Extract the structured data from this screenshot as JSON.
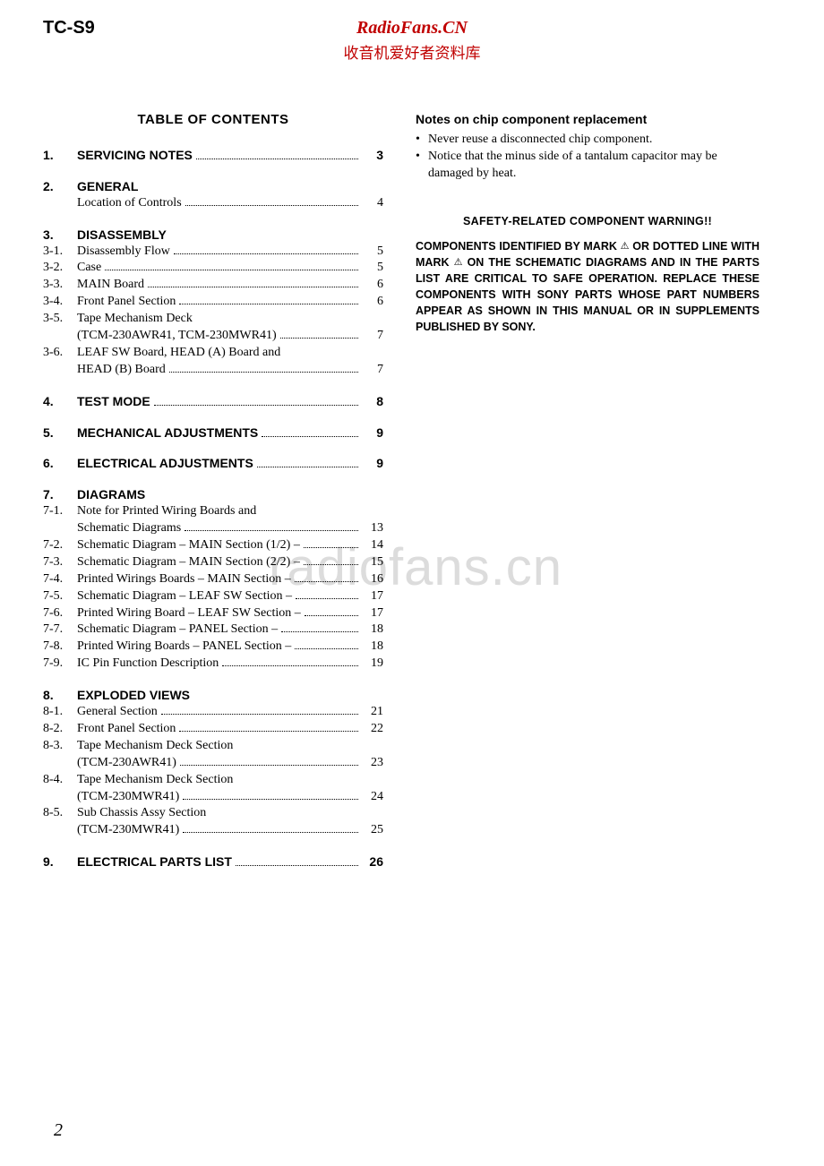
{
  "header": {
    "model": "TC-S9",
    "brand_en": "RadioFans.CN",
    "brand_cn": "收音机爱好者资料库"
  },
  "watermark": "radiofans.cn",
  "page_number": "2",
  "toc_title": "TABLE  OF  CONTENTS",
  "toc": [
    {
      "type": "bold",
      "num": "1.",
      "label": "SERVICING NOTES",
      "page": "3",
      "dots": true
    },
    {
      "type": "gap"
    },
    {
      "type": "bold",
      "num": "2.",
      "label": "GENERAL",
      "page": "",
      "dots": false
    },
    {
      "type": "plain",
      "num": "",
      "label": "Location of Controls",
      "page": "4",
      "dots": true
    },
    {
      "type": "gap"
    },
    {
      "type": "bold",
      "num": "3.",
      "label": "DISASSEMBLY",
      "page": "",
      "dots": false
    },
    {
      "type": "plain",
      "num": "3-1.",
      "label": "Disassembly Flow",
      "page": "5",
      "dots": true
    },
    {
      "type": "plain",
      "num": "3-2.",
      "label": "Case",
      "page": "5",
      "dots": true
    },
    {
      "type": "plain",
      "num": "3-3.",
      "label": "MAIN Board",
      "page": "6",
      "dots": true
    },
    {
      "type": "plain",
      "num": "3-4.",
      "label": "Front Panel Section",
      "page": "6",
      "dots": true
    },
    {
      "type": "plain",
      "num": "3-5.",
      "label": "Tape Mechanism Deck",
      "page": "",
      "dots": false
    },
    {
      "type": "plain",
      "num": "",
      "label": "(TCM-230AWR41, TCM-230MWR41)",
      "page": "7",
      "dots": true
    },
    {
      "type": "plain",
      "num": "3-6.",
      "label": "LEAF SW Board, HEAD (A) Board and",
      "page": "",
      "dots": false
    },
    {
      "type": "plain",
      "num": "",
      "label": "HEAD (B) Board",
      "page": "7",
      "dots": true
    },
    {
      "type": "gap"
    },
    {
      "type": "bold",
      "num": "4.",
      "label": "TEST  MODE",
      "page": "8",
      "dots": true
    },
    {
      "type": "gap"
    },
    {
      "type": "bold",
      "num": "5.",
      "label": "MECHANICAL  ADJUSTMENTS",
      "page": "9",
      "dots": true
    },
    {
      "type": "gap"
    },
    {
      "type": "bold",
      "num": "6.",
      "label": "ELECTRICAL  ADJUSTMENTS",
      "page": "9",
      "dots": true
    },
    {
      "type": "gap"
    },
    {
      "type": "bold",
      "num": "7.",
      "label": "DIAGRAMS",
      "page": "",
      "dots": false
    },
    {
      "type": "plain",
      "num": "7-1.",
      "label": "Note for Printed Wiring Boards and",
      "page": "",
      "dots": false
    },
    {
      "type": "plain",
      "num": "",
      "label": "Schematic Diagrams",
      "page": "13",
      "dots": true
    },
    {
      "type": "plain",
      "num": "7-2.",
      "label": "Schematic Diagram  – MAIN Section (1/2) –",
      "page": "14",
      "dots": true
    },
    {
      "type": "plain",
      "num": "7-3.",
      "label": "Schematic Diagram  – MAIN Section (2/2) –",
      "page": "15",
      "dots": true
    },
    {
      "type": "plain",
      "num": "7-4.",
      "label": "Printed Wirings Boards  – MAIN Section –",
      "page": "16",
      "dots": true
    },
    {
      "type": "plain",
      "num": "7-5.",
      "label": "Schematic Diagram  – LEAF SW Section – ",
      "page": "17",
      "dots": true
    },
    {
      "type": "plain",
      "num": "7-6.",
      "label": "Printed Wiring Board  – LEAF SW Section – ",
      "page": "17",
      "dots": true
    },
    {
      "type": "plain",
      "num": "7-7.",
      "label": "Schematic Diagram  – PANEL Section –",
      "page": "18",
      "dots": true
    },
    {
      "type": "plain",
      "num": "7-8.",
      "label": "Printed Wiring Boards  – PANEL Section – ",
      "page": "18",
      "dots": true
    },
    {
      "type": "plain",
      "num": "7-9.",
      "label": "IC Pin Function Description",
      "page": "19",
      "dots": true
    },
    {
      "type": "gap"
    },
    {
      "type": "bold",
      "num": "8.",
      "label": "EXPLODED  VIEWS",
      "page": "",
      "dots": false
    },
    {
      "type": "plain",
      "num": "8-1.",
      "label": "General Section",
      "page": "21",
      "dots": true
    },
    {
      "type": "plain",
      "num": "8-2.",
      "label": "Front Panel Section",
      "page": "22",
      "dots": true
    },
    {
      "type": "plain",
      "num": "8-3.",
      "label": "Tape Mechanism Deck Section",
      "page": "",
      "dots": false
    },
    {
      "type": "plain",
      "num": "",
      "label": "(TCM-230AWR41)",
      "page": "23",
      "dots": true
    },
    {
      "type": "plain",
      "num": "8-4.",
      "label": "Tape Mechanism Deck Section",
      "page": "",
      "dots": false
    },
    {
      "type": "plain",
      "num": "",
      "label": "(TCM-230MWR41)",
      "page": "24",
      "dots": true
    },
    {
      "type": "plain",
      "num": "8-5.",
      "label": "Sub Chassis Assy Section",
      "page": "",
      "dots": false
    },
    {
      "type": "plain",
      "num": "",
      "label": "(TCM-230MWR41)",
      "page": "25",
      "dots": true
    },
    {
      "type": "gap"
    },
    {
      "type": "bold",
      "num": "9.",
      "label": "ELECTRICAL  PARTS  LIST",
      "page": "26",
      "dots": true
    }
  ],
  "right": {
    "notes_title": "Notes on chip component replacement",
    "bullets": [
      "Never reuse a disconnected chip component.",
      "Notice that the minus side of a tantalum capacitor may be damaged by heat."
    ],
    "safety_head": "SAFETY-RELATED  COMPONENT  WARNING!!",
    "safety_body_1": "COMPONENTS IDENTIFIED BY MARK ",
    "safety_body_2": " OR DOTTED LINE WITH MARK ",
    "safety_body_3": " ON THE SCHEMATIC DIAGRAMS AND IN THE PARTS LIST ARE CRITICAL TO SAFE OPERATION. REPLACE THESE COMPONENTS WITH SONY PARTS WHOSE PART NUMBERS APPEAR AS SHOWN IN THIS MANUAL OR IN SUPPLEMENTS PUBLISHED BY SONY.",
    "triangle": "⚠"
  }
}
